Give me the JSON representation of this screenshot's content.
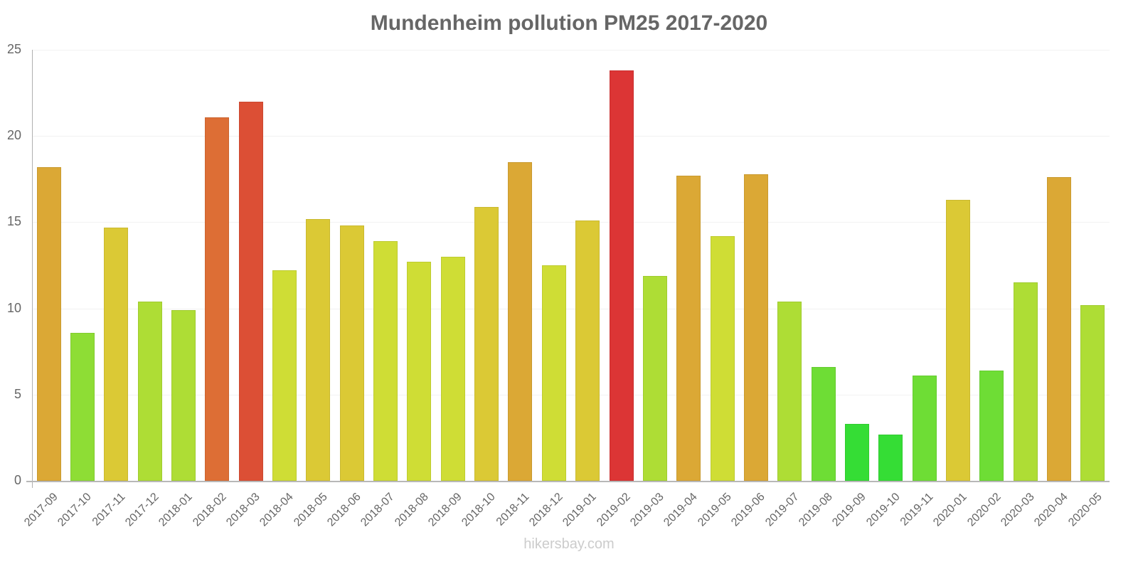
{
  "chart_data": {
    "type": "bar",
    "title": "Mundenheim pollution PM25 2017-2020",
    "xlabel": "",
    "ylabel": "",
    "ylim": [
      0,
      25
    ],
    "yticks": [
      0,
      5,
      10,
      15,
      20,
      25
    ],
    "grid": true,
    "legend": null,
    "categories": [
      "2017-09",
      "2017-10",
      "2017-11",
      "2017-12",
      "2018-01",
      "2018-02",
      "2018-03",
      "2018-04",
      "2018-05",
      "2018-06",
      "2018-07",
      "2018-08",
      "2018-09",
      "2018-10",
      "2018-11",
      "2018-12",
      "2019-01",
      "2019-02",
      "2019-03",
      "2019-04",
      "2019-05",
      "2019-06",
      "2019-07",
      "2019-08",
      "2019-09",
      "2019-10",
      "2019-11",
      "2020-01",
      "2020-02",
      "2020-03",
      "2020-04",
      "2020-05"
    ],
    "values": [
      18.2,
      8.6,
      14.7,
      10.4,
      9.9,
      21.1,
      22,
      12.2,
      15.2,
      14.8,
      13.9,
      12.7,
      13,
      15.9,
      18.5,
      12.5,
      15.1,
      23.8,
      11.9,
      17.7,
      14.2,
      17.8,
      10.4,
      6.6,
      3.3,
      2.7,
      6.1,
      16.3,
      6.4,
      11.5,
      17.6,
      10.2
    ],
    "colors": [
      "#dba835",
      "#8edd35",
      "#dbc935",
      "#aedd35",
      "#aedd35",
      "#dd6e35",
      "#dc4f35",
      "#cfdd35",
      "#dbc935",
      "#dbc935",
      "#cfdd35",
      "#cfdd35",
      "#cfdd35",
      "#dbc935",
      "#dba835",
      "#cfdd35",
      "#dbc935",
      "#dc3535",
      "#aedd35",
      "#dba835",
      "#cfdd35",
      "#dba835",
      "#aedd35",
      "#6edd35",
      "#35dd35",
      "#35dd35",
      "#6edd35",
      "#dbc935",
      "#6edd35",
      "#aedd35",
      "#dba835",
      "#aedd35"
    ]
  },
  "watermark": "hikersbay.com"
}
